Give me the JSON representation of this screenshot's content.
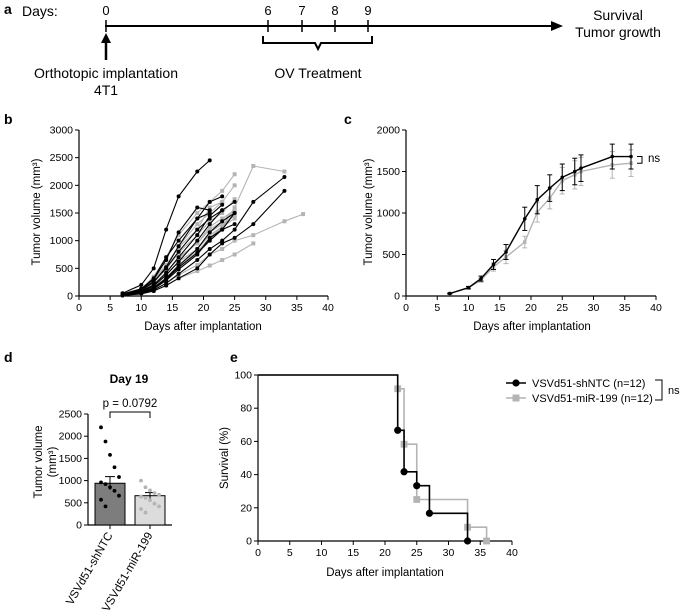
{
  "timeline": {
    "panel_letter": "a",
    "days_label": "Days:",
    "day_ticks": [
      "0",
      "6",
      "7",
      "8",
      "9"
    ],
    "implantation_label": "Orthotopic implantation",
    "cell_line_label": "4T1",
    "treatment_label": "OV Treatment",
    "endpoint_line1": "Survival",
    "endpoint_line2": "Tumor growth"
  },
  "colors": {
    "black": "#000000",
    "grey": "#b4b4b4",
    "bar_black": "#7d7d7d",
    "bar_grey": "#dcdcdc"
  },
  "chart_data": [
    {
      "id": "b",
      "panel_letter": "b",
      "type": "line",
      "title": "",
      "xlabel": "Days after implantation",
      "ylabel": "Tumor volume (mm³)",
      "xlim": [
        0,
        40
      ],
      "ylim": [
        0,
        3000
      ],
      "xticks": [
        0,
        5,
        10,
        15,
        20,
        25,
        30,
        35,
        40
      ],
      "yticks": [
        0,
        500,
        1000,
        1500,
        2000,
        2500,
        3000
      ],
      "series": [
        {
          "group": "black",
          "x": [
            7,
            10,
            12,
            14,
            16,
            19,
            21
          ],
          "y": [
            50,
            200,
            500,
            1200,
            1800,
            2250,
            2450
          ]
        },
        {
          "group": "black",
          "x": [
            7,
            10,
            12,
            14,
            16,
            19,
            21
          ],
          "y": [
            40,
            120,
            300,
            650,
            1150,
            1600,
            1550
          ]
        },
        {
          "group": "black",
          "x": [
            7,
            10,
            12,
            14,
            16,
            19,
            21,
            23
          ],
          "y": [
            30,
            100,
            250,
            520,
            900,
            1400,
            1700,
            1800
          ]
        },
        {
          "group": "black",
          "x": [
            7,
            10,
            12,
            14,
            16,
            19,
            21,
            23
          ],
          "y": [
            25,
            90,
            200,
            420,
            700,
            1100,
            1450,
            1650
          ]
        },
        {
          "group": "black",
          "x": [
            7,
            10,
            12,
            14,
            16,
            19,
            21,
            23,
            25
          ],
          "y": [
            20,
            80,
            180,
            380,
            620,
            1000,
            1300,
            1550,
            1700
          ]
        },
        {
          "group": "black",
          "x": [
            7,
            10,
            12,
            14,
            16,
            19,
            21,
            23,
            25
          ],
          "y": [
            20,
            70,
            150,
            320,
            550,
            850,
            1150,
            1350,
            1500
          ]
        },
        {
          "group": "black",
          "x": [
            7,
            10,
            12,
            14,
            16,
            19,
            21,
            23,
            25
          ],
          "y": [
            15,
            60,
            130,
            280,
            480,
            750,
            1050,
            1200,
            1500
          ]
        },
        {
          "group": "black",
          "x": [
            7,
            10,
            12,
            14,
            16,
            19,
            21,
            23,
            25,
            28,
            33
          ],
          "y": [
            15,
            50,
            110,
            230,
            400,
            650,
            850,
            1000,
            1200,
            1700,
            2150
          ]
        },
        {
          "group": "black",
          "x": [
            7,
            10,
            12,
            14,
            16,
            19,
            21,
            23,
            25,
            28,
            33
          ],
          "y": [
            10,
            40,
            90,
            190,
            320,
            500,
            750,
            950,
            1050,
            1300,
            1900
          ]
        },
        {
          "group": "black",
          "x": [
            7,
            10,
            12,
            14,
            16,
            19,
            21,
            23
          ],
          "y": [
            30,
            110,
            260,
            500,
            800,
            1200,
            1400,
            1550
          ]
        },
        {
          "group": "black",
          "x": [
            7,
            10,
            12,
            14,
            16,
            19,
            21
          ],
          "y": [
            35,
            130,
            320,
            700,
            1000,
            1400,
            1500
          ]
        },
        {
          "group": "black",
          "x": [
            7,
            10,
            12,
            14,
            16,
            19,
            21,
            23,
            25
          ],
          "y": [
            20,
            60,
            140,
            300,
            520,
            780,
            1000,
            1200,
            1300
          ]
        },
        {
          "group": "grey",
          "x": [
            7,
            10,
            12,
            14,
            16,
            19,
            21,
            23,
            25
          ],
          "y": [
            40,
            130,
            350,
            700,
            1100,
            1500,
            1700,
            1900,
            2200
          ]
        },
        {
          "group": "grey",
          "x": [
            7,
            10,
            12,
            14,
            16,
            19,
            21,
            23,
            25
          ],
          "y": [
            35,
            110,
            280,
            550,
            900,
            1300,
            1500,
            1700,
            2000
          ]
        },
        {
          "group": "grey",
          "x": [
            7,
            10,
            12,
            14,
            16,
            19,
            21,
            23,
            25
          ],
          "y": [
            30,
            100,
            240,
            480,
            780,
            1100,
            1350,
            1500,
            1750
          ]
        },
        {
          "group": "grey",
          "x": [
            7,
            10,
            12,
            14,
            16,
            19,
            21,
            23,
            25
          ],
          "y": [
            25,
            90,
            200,
            420,
            700,
            950,
            1250,
            1400,
            1550
          ]
        },
        {
          "group": "grey",
          "x": [
            7,
            10,
            12,
            14,
            16,
            19,
            21,
            23,
            25
          ],
          "y": [
            25,
            80,
            180,
            380,
            620,
            850,
            1150,
            1300,
            1450
          ]
        },
        {
          "group": "grey",
          "x": [
            7,
            10,
            12,
            14,
            16,
            19,
            21,
            23,
            25
          ],
          "y": [
            20,
            70,
            160,
            330,
            560,
            800,
            1050,
            1250,
            1500
          ]
        },
        {
          "group": "grey",
          "x": [
            7,
            10,
            12,
            14,
            16,
            19,
            21,
            23,
            25,
            28,
            33
          ],
          "y": [
            20,
            60,
            140,
            290,
            500,
            750,
            1000,
            1250,
            1600,
            2350,
            2250
          ]
        },
        {
          "group": "grey",
          "x": [
            7,
            10,
            12,
            14,
            16,
            19,
            21,
            23,
            25,
            28,
            33,
            36
          ],
          "y": [
            15,
            50,
            110,
            230,
            380,
            560,
            750,
            850,
            1000,
            1100,
            1350,
            1480
          ]
        },
        {
          "group": "grey",
          "x": [
            7,
            10,
            12,
            14,
            16,
            19,
            21,
            23,
            25,
            28
          ],
          "y": [
            15,
            40,
            90,
            190,
            320,
            450,
            550,
            650,
            750,
            950
          ]
        },
        {
          "group": "grey",
          "x": [
            7,
            10,
            12,
            14,
            16,
            19,
            21,
            23,
            25
          ],
          "y": [
            30,
            90,
            200,
            420,
            680,
            950,
            1200,
            1350,
            1550
          ]
        },
        {
          "group": "grey",
          "x": [
            7,
            10,
            12,
            14,
            16,
            19,
            21,
            23,
            25
          ],
          "y": [
            25,
            80,
            190,
            380,
            620,
            850,
            1100,
            1250,
            1400
          ]
        },
        {
          "group": "grey",
          "x": [
            7,
            10,
            12,
            14,
            16,
            19,
            21,
            23
          ],
          "y": [
            35,
            120,
            300,
            560,
            880,
            1200,
            1600,
            1700
          ]
        }
      ]
    },
    {
      "id": "c",
      "panel_letter": "c",
      "type": "line",
      "title": "",
      "xlabel": "Days after implantation",
      "ylabel": "Tumor volume (mm³)",
      "xlim": [
        0,
        40
      ],
      "ylim": [
        0,
        2000
      ],
      "xticks": [
        0,
        5,
        10,
        15,
        20,
        25,
        30,
        35,
        40
      ],
      "yticks": [
        0,
        500,
        1000,
        1500,
        2000
      ],
      "annotation": "ns",
      "series": [
        {
          "group": "black",
          "x": [
            7,
            10,
            12,
            14,
            16,
            19,
            21,
            23,
            25,
            27,
            28,
            33,
            36
          ],
          "y": [
            30,
            100,
            210,
            380,
            530,
            930,
            1160,
            1300,
            1430,
            1500,
            1540,
            1680,
            1680
          ],
          "err": [
            5,
            15,
            30,
            60,
            90,
            140,
            170,
            160,
            160,
            160,
            160,
            150,
            150
          ]
        },
        {
          "group": "grey",
          "x": [
            7,
            10,
            12,
            14,
            16,
            19,
            21,
            23,
            25,
            27,
            28,
            33,
            36
          ],
          "y": [
            30,
            100,
            190,
            350,
            470,
            650,
            1010,
            1180,
            1390,
            1460,
            1500,
            1580,
            1600
          ],
          "err": [
            5,
            15,
            25,
            50,
            80,
            70,
            120,
            130,
            160,
            170,
            170,
            160,
            160
          ]
        }
      ]
    },
    {
      "id": "d",
      "panel_letter": "d",
      "type": "bar",
      "title": "Day 19",
      "ylabel_line1": "Tumor volume",
      "ylabel_line2": "(mm³)",
      "ylim": [
        0,
        2500
      ],
      "yticks": [
        0,
        500,
        1000,
        1500,
        2000,
        2500
      ],
      "categories": [
        "VSVd51-shNTC",
        "VSVd51-miR-199"
      ],
      "values": [
        940,
        660
      ],
      "errors": [
        150,
        70
      ],
      "points": [
        [
          2200,
          1880,
          1580,
          1300,
          1080,
          960,
          920,
          850,
          770,
          660,
          570,
          420
        ],
        [
          1000,
          850,
          780,
          720,
          680,
          640,
          610,
          560,
          480,
          420,
          360,
          280
        ]
      ],
      "pvalue": "p = 0.0792"
    },
    {
      "id": "e",
      "panel_letter": "e",
      "type": "line",
      "title": "",
      "xlabel": "Days after implantation",
      "ylabel": "Survival (%)",
      "xlim": [
        0,
        40
      ],
      "ylim": [
        0,
        100
      ],
      "xticks": [
        0,
        5,
        10,
        15,
        20,
        25,
        30,
        35,
        40
      ],
      "yticks": [
        0,
        20,
        40,
        60,
        80,
        100
      ],
      "annotation": "ns",
      "series": [
        {
          "name": "VSVd51-shNTC (n=12)",
          "group": "black",
          "steps": [
            [
              0,
              100
            ],
            [
              22,
              66.7
            ],
            [
              23,
              41.7
            ],
            [
              25,
              33.3
            ],
            [
              27,
              16.7
            ],
            [
              33,
              0
            ]
          ],
          "markers": [
            [
              22,
              66.7
            ],
            [
              23,
              41.7
            ],
            [
              25,
              33.3
            ],
            [
              27,
              16.7
            ],
            [
              33,
              0
            ]
          ]
        },
        {
          "name": "VSVd51-miR-199 (n=12)",
          "group": "grey",
          "steps": [
            [
              0,
              100
            ],
            [
              22,
              91.7
            ],
            [
              23,
              58.3
            ],
            [
              25,
              25
            ],
            [
              33,
              8.3
            ],
            [
              36,
              0
            ]
          ],
          "markers": [
            [
              22,
              91.7
            ],
            [
              23,
              58.3
            ],
            [
              25,
              25
            ],
            [
              33,
              8.3
            ],
            [
              36,
              0
            ]
          ]
        }
      ]
    }
  ]
}
